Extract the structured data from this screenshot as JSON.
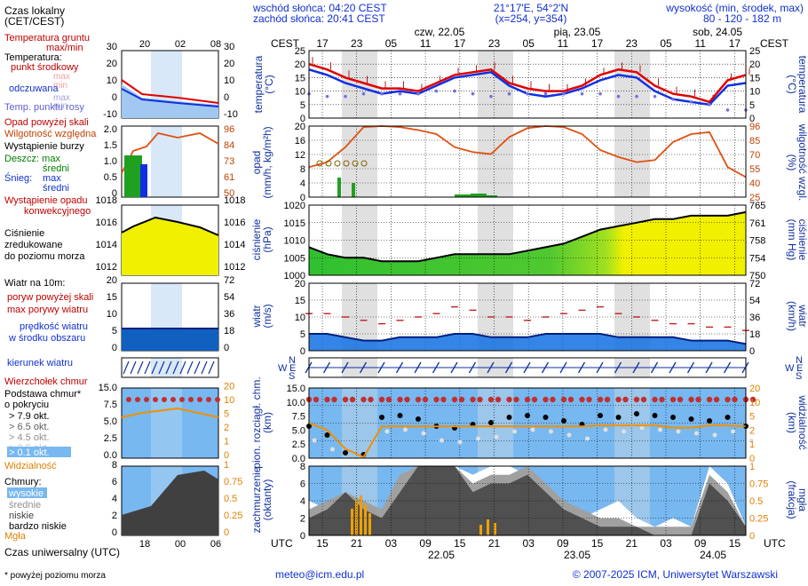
{
  "header": {
    "sunrise": "wschód słońca: 04:20 CEST",
    "sunset": "zachód słońca: 20:41 CEST",
    "coords": "21°17'E, 54°2'N",
    "grid": "(x=254,  y=354)",
    "altitude_label": "wysokość (min, środek, max)",
    "altitude_values": "80 - 120 - 182 m"
  },
  "time": {
    "cest_label": "CEST",
    "utc_label": "UTC",
    "days_top": [
      "czw, 22.05",
      "pią, 23.05",
      "sob, 24.05"
    ],
    "hours_top": [
      "17",
      "23",
      "05",
      "11",
      "17",
      "23",
      "05",
      "11",
      "17",
      "23",
      "05",
      "11",
      "17"
    ],
    "hours_bottom": [
      "15",
      "21",
      "03",
      "09",
      "15",
      "21",
      "03",
      "09",
      "15",
      "21",
      "03",
      "09",
      "15"
    ],
    "days_bottom": [
      "22.05",
      "23.05",
      "24.05"
    ]
  },
  "legend": {
    "local_time_1": "Czas lokalny",
    "local_time_2": "(CET/CEST)",
    "legend_hours_top": [
      "20",
      "02",
      "08"
    ],
    "legend_hours_bottom": [
      "18",
      "00",
      "06"
    ],
    "soil_temp_1": "Temperatura gruntu",
    "soil_temp_2": "max/min",
    "temperature": "Temperatura:",
    "temp_mid": "punkt środkowy",
    "temp_max": "max",
    "temp_min": "min",
    "temp_felt": "odczuwana",
    "temp_felt_max": "max",
    "temp_felt_min": "min",
    "dew_point": "Temp. punktu rosy",
    "precip_over": "Opad powyżej skali",
    "humidity": "Wilgotność względna",
    "storm": "Wystąpienie burzy",
    "rain": "Deszcz: max",
    "rain_avg": "średni",
    "snow": "Śnieg:",
    "snow_max": "max",
    "snow_avg": "średni",
    "conv_1": "Wystąpienie opadu",
    "conv_2": "konwekcyjnego",
    "pressure_1": "Ciśnienie",
    "pressure_2": "zredukowane",
    "pressure_3": "do poziomu morza",
    "wind_10m": "Wiatr na 10m:",
    "gust_over": "poryw powyżej skali",
    "gust_max": "max porywy wiatru",
    "wind_speed_1": "prędkość wiatru",
    "wind_speed_2": "w środku obszaru",
    "wind_dir": "kierunek wiatru",
    "cloud_top": "Wierzchołek chmur",
    "cloud_base_1": "Podstawa chmur*",
    "cloud_base_2": "o pokryciu",
    "okt": [
      "> 7.9 okt.",
      "> 6.5 okt.",
      "> 4.5 okt.",
      "> 2.5 okt.",
      "> 0.1 okt."
    ],
    "visibility": "Widzialność",
    "clouds": "Chmury:",
    "cl_high": "wysokie",
    "cl_mid": "średnie",
    "cl_low": "niskie",
    "cl_vlow": "bardzo niskie",
    "fog": "Mgła",
    "utc_time": "Czas uniwersalny (UTC)",
    "footnote": "* powyżej poziomu morza"
  },
  "axes": {
    "temp_left": "temperatura",
    "temp_left_unit": "(°C)",
    "temp_right": "temperatura",
    "temp_right_unit": "(°C)",
    "precip_left_1": "opad",
    "precip_left_2": "(mm/h, kg/m²h)",
    "precip_right_1": "wilgotność wzgl.",
    "precip_right_2": "(%)",
    "press_left_1": "ciśnienie",
    "press_left_2": "(hPa)",
    "press_right_1": "ciśnienie",
    "press_right_2": "(mm Hg)",
    "wind_left_1": "wiatr",
    "wind_left_2": "(m/s)",
    "wind_right_1": "wiatr",
    "wind_right_2": "(km/h)",
    "cloud_left_1": "pion. rozciągł. chm.",
    "cloud_left_2": "(km)",
    "cloud_right_1": "widzialność",
    "cloud_right_2": "(km)",
    "cover_left_1": "zachmurzenie",
    "cover_left_2": "(oktanty)",
    "cover_right_1": "mgła",
    "cover_right_2": "(frakcja)",
    "compass_n": "N",
    "compass_e": "E",
    "compass_s": "S",
    "compass_w": "W"
  },
  "footer": {
    "email": "meteo@icm.edu.pl",
    "copyright": "© 2007-2025 ICM, Uniwersytet Warszawski"
  },
  "colors": {
    "temp": "#e00000",
    "felt": "#1030e0",
    "dew": "#7070e0",
    "humidity": "#e05010",
    "night": "#e0e0e0",
    "pressure_fill": "#f0f000",
    "wind_fill": "#1070e0",
    "sky": "#78b8f0"
  },
  "chart_data": [
    {
      "type": "line",
      "name_panel": "temperature",
      "x_hours_cest": [
        17,
        20,
        23,
        26,
        29,
        32,
        35,
        38,
        41,
        44,
        47,
        50,
        53,
        56,
        59,
        62,
        65,
        68,
        71,
        74,
        77,
        80,
        83,
        86,
        89
      ],
      "series": [
        {
          "name": "punkt środkowy",
          "values": [
            20,
            18,
            15,
            13,
            11,
            11,
            10,
            13,
            16,
            17,
            18,
            13,
            11,
            10,
            10,
            12,
            16,
            18,
            17,
            12,
            9,
            8,
            6,
            14,
            16
          ]
        },
        {
          "name": "odczuwana",
          "values": [
            18,
            16,
            13,
            11,
            9,
            10,
            9,
            12,
            15,
            16,
            17,
            12,
            9,
            8,
            9,
            11,
            14,
            16,
            15,
            10,
            7,
            6,
            5,
            12,
            13
          ]
        },
        {
          "name": "Temp. punktu rosy",
          "values": [
            9,
            8,
            8,
            9,
            9,
            9,
            9,
            10,
            10,
            9,
            8,
            9,
            9,
            9,
            9,
            9,
            9,
            8,
            8,
            8,
            7,
            6,
            5,
            3,
            3
          ]
        }
      ],
      "ylim": [
        0,
        25
      ],
      "grid": true
    },
    {
      "type": "line",
      "name_panel": "precipitation-humidity",
      "series": [
        {
          "name": "Wilgotność względna",
          "values": [
            55,
            60,
            75,
            95,
            96,
            95,
            92,
            88,
            75,
            70,
            68,
            85,
            94,
            96,
            95,
            88,
            72,
            65,
            60,
            62,
            80,
            88,
            90,
            55,
            45
          ]
        }
      ],
      "ylim_left": [
        0,
        20
      ],
      "ylim_right": [
        25,
        96
      ],
      "grid": true
    },
    {
      "type": "area",
      "name_panel": "pressure",
      "series": [
        {
          "name": "Ciśnienie",
          "values": [
            1008,
            1006,
            1005,
            1005,
            1004,
            1004,
            1004,
            1005,
            1006,
            1006,
            1006,
            1006,
            1007,
            1008,
            1009,
            1011,
            1013,
            1014,
            1015,
            1016,
            1016,
            1017,
            1017,
            1017,
            1018
          ]
        }
      ],
      "ylim": [
        1000,
        1020
      ],
      "grid": true
    },
    {
      "type": "line",
      "name_panel": "wind",
      "series": [
        {
          "name": "prędkość wiatru",
          "values": [
            5,
            5,
            4,
            3,
            3,
            4,
            4,
            4,
            5,
            5,
            4,
            4,
            4,
            5,
            5,
            5,
            5,
            4,
            4,
            4,
            4,
            3,
            3,
            3,
            2
          ]
        },
        {
          "name": "max porywy wiatru",
          "values": [
            11,
            11,
            10,
            9,
            8,
            9,
            10,
            11,
            13,
            12,
            10,
            10,
            9,
            10,
            11,
            12,
            13,
            11,
            10,
            9,
            8,
            8,
            7,
            7,
            6
          ]
        }
      ],
      "ylim": [
        0,
        20
      ],
      "grid": true
    },
    {
      "type": "line",
      "name_panel": "visibility",
      "series": [
        {
          "name": "Widzialność",
          "values": [
            7.5,
            6,
            2,
            0.2,
            6.8,
            6.8,
            6.8,
            6.8,
            6.8,
            6.8,
            6.8,
            6.8,
            6.8,
            6.8,
            6.8,
            6.8,
            7,
            7,
            7,
            7,
            6.5,
            6.5,
            7,
            7,
            6.8
          ]
        }
      ],
      "ylim": [
        0,
        15
      ],
      "grid": true
    },
    {
      "type": "area",
      "name_panel": "cloud-cover",
      "series": [
        {
          "name": "wysokie",
          "values": [
            4,
            3,
            3,
            2,
            2,
            6,
            8,
            8,
            8,
            7,
            8,
            8,
            7,
            6,
            3,
            2,
            3,
            4,
            2,
            1,
            2,
            1,
            8,
            6,
            1
          ]
        },
        {
          "name": "średnie",
          "values": [
            3,
            4,
            5,
            4,
            3,
            7,
            8,
            8,
            8,
            6,
            7,
            7,
            8,
            6,
            4,
            3,
            2,
            2,
            1,
            1,
            1,
            1,
            7,
            5,
            1
          ]
        },
        {
          "name": "niskie",
          "values": [
            2,
            3,
            5,
            3,
            2,
            5,
            8,
            8,
            8,
            5,
            6,
            6,
            7,
            5,
            3,
            2,
            1,
            1,
            1,
            0,
            0,
            0,
            6,
            4,
            1
          ]
        }
      ],
      "ylim": [
        0,
        8
      ],
      "grid": true
    }
  ]
}
